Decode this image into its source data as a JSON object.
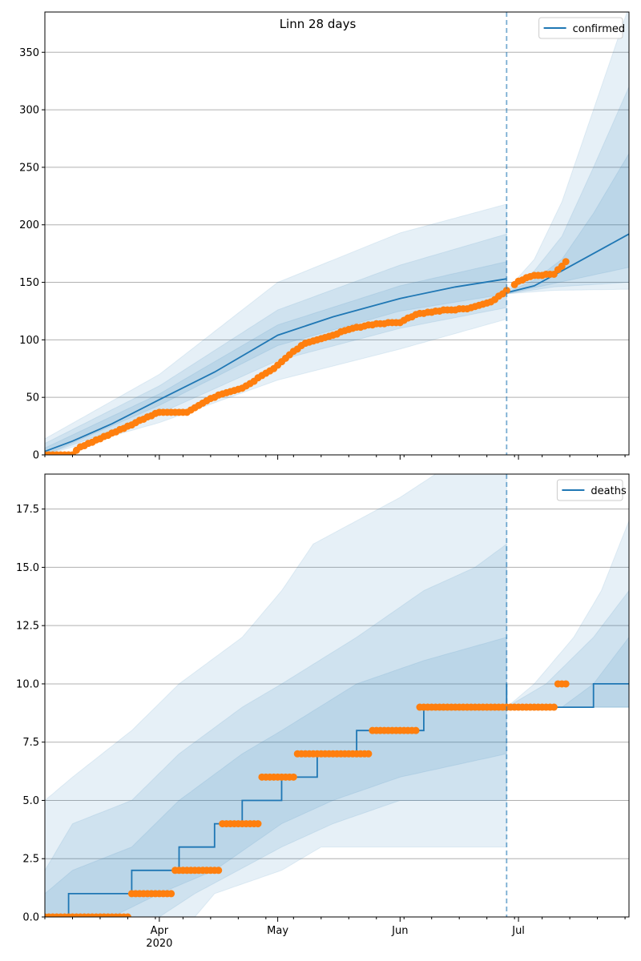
{
  "colors": {
    "model": "#1f77b4",
    "observed": "#ff7f0e",
    "grid": "#b0b0b0",
    "band": "#1f77b4"
  },
  "chart_data": [
    {
      "type": "line",
      "title": "Linn 28 days",
      "xlabel": "",
      "ylabel": "",
      "legend": {
        "placement": "top-right",
        "entries": [
          "confirmed"
        ]
      },
      "grid": "horizontal",
      "xlim": [
        "2020-03-03",
        "2020-07-29"
      ],
      "ylim": [
        0,
        385
      ],
      "y_ticks": [
        "0",
        "50",
        "100",
        "150",
        "200",
        "250",
        "300",
        "350"
      ],
      "x_ticks": [
        "Apr\n2020",
        "May",
        "Jun",
        "Jul"
      ],
      "forecast_start": "2020-06-28",
      "series": [
        {
          "name": "confirmed",
          "points": [
            [
              "2020-03-03",
              3
            ],
            [
              "2020-03-10",
              12
            ],
            [
              "2020-03-20",
              27
            ],
            [
              "2020-04-01",
              48
            ],
            [
              "2020-04-15",
              72
            ],
            [
              "2020-05-01",
              104
            ],
            [
              "2020-05-15",
              120
            ],
            [
              "2020-06-01",
              136
            ],
            [
              "2020-06-15",
              146
            ],
            [
              "2020-06-28",
              153
            ]
          ]
        },
        {
          "points": [
            [
              "2020-06-28",
              141
            ],
            [
              "2020-07-05",
              147
            ],
            [
              "2020-07-12",
              160
            ],
            [
              "2020-07-20",
              175
            ],
            [
              "2020-07-29",
              192
            ]
          ]
        }
      ],
      "observed": [
        [
          "2020-03-03",
          0
        ],
        [
          "2020-03-10",
          0
        ],
        [
          "2020-03-12",
          7
        ],
        [
          "2020-03-17",
          14
        ],
        [
          "2020-03-26",
          28
        ],
        [
          "2020-04-01",
          37
        ],
        [
          "2020-04-08",
          37
        ],
        [
          "2020-04-12",
          45
        ],
        [
          "2020-04-16",
          52
        ],
        [
          "2020-04-22",
          58
        ],
        [
          "2020-04-30",
          75
        ],
        [
          "2020-05-04",
          87
        ],
        [
          "2020-05-08",
          97
        ],
        [
          "2020-05-14",
          103
        ],
        [
          "2020-05-20",
          110
        ],
        [
          "2020-05-26",
          114
        ],
        [
          "2020-06-01",
          115
        ],
        [
          "2020-06-05",
          122
        ],
        [
          "2020-06-10",
          125
        ],
        [
          "2020-06-18",
          127
        ],
        [
          "2020-06-24",
          133
        ],
        [
          "2020-06-27",
          140
        ],
        [
          "2020-07-01",
          151
        ],
        [
          "2020-07-05",
          156
        ],
        [
          "2020-07-10",
          157
        ],
        [
          "2020-07-13",
          168
        ]
      ],
      "bands": [
        {
          "level": "outer",
          "upper": [
            [
              "2020-03-03",
              14
            ],
            [
              "2020-04-01",
              70
            ],
            [
              "2020-05-01",
              150
            ],
            [
              "2020-06-01",
              193
            ],
            [
              "2020-06-28",
              218
            ]
          ],
          "lower": [
            [
              "2020-03-03",
              0
            ],
            [
              "2020-04-01",
              28
            ],
            [
              "2020-05-01",
              65
            ],
            [
              "2020-06-01",
              92
            ],
            [
              "2020-06-28",
              118
            ]
          ]
        },
        {
          "level": "middle",
          "upper": [
            [
              "2020-03-03",
              10
            ],
            [
              "2020-04-01",
              60
            ],
            [
              "2020-05-01",
              126
            ],
            [
              "2020-06-01",
              165
            ],
            [
              "2020-06-28",
              192
            ]
          ],
          "lower": [
            [
              "2020-03-03",
              0
            ],
            [
              "2020-04-01",
              36
            ],
            [
              "2020-05-01",
              82
            ],
            [
              "2020-06-01",
              110
            ],
            [
              "2020-06-28",
              128
            ]
          ]
        },
        {
          "level": "inner",
          "upper": [
            [
              "2020-03-03",
              6
            ],
            [
              "2020-04-01",
              53
            ],
            [
              "2020-05-01",
              113
            ],
            [
              "2020-06-01",
              147
            ],
            [
              "2020-06-28",
              168
            ]
          ],
          "lower": [
            [
              "2020-03-03",
              0
            ],
            [
              "2020-04-01",
              43
            ],
            [
              "2020-05-01",
              95
            ],
            [
              "2020-06-01",
              125
            ],
            [
              "2020-06-28",
              140
            ]
          ]
        },
        {
          "level": "outer",
          "upper": [
            [
              "2020-06-28",
              143
            ],
            [
              "2020-07-05",
              170
            ],
            [
              "2020-07-12",
              220
            ],
            [
              "2020-07-20",
              300
            ],
            [
              "2020-07-29",
              390
            ]
          ],
          "lower": [
            [
              "2020-06-28",
              140
            ],
            [
              "2020-07-10",
              143
            ],
            [
              "2020-07-29",
              144
            ]
          ]
        },
        {
          "level": "middle",
          "upper": [
            [
              "2020-06-28",
              142
            ],
            [
              "2020-07-05",
              160
            ],
            [
              "2020-07-12",
              190
            ],
            [
              "2020-07-20",
              250
            ],
            [
              "2020-07-29",
              320
            ]
          ],
          "lower": [
            [
              "2020-06-28",
              140
            ],
            [
              "2020-07-10",
              146
            ],
            [
              "2020-07-29",
              150
            ]
          ]
        },
        {
          "level": "inner",
          "upper": [
            [
              "2020-06-28",
              141
            ],
            [
              "2020-07-05",
              152
            ],
            [
              "2020-07-12",
              170
            ],
            [
              "2020-07-20",
              210
            ],
            [
              "2020-07-29",
              262
            ]
          ],
          "lower": [
            [
              "2020-06-28",
              140
            ],
            [
              "2020-07-10",
              149
            ],
            [
              "2020-07-29",
              163
            ]
          ]
        }
      ]
    },
    {
      "type": "line",
      "title": "",
      "xlabel": "",
      "ylabel": "",
      "legend": {
        "placement": "top-right",
        "entries": [
          "deaths"
        ]
      },
      "grid": "horizontal",
      "xlim": [
        "2020-03-03",
        "2020-07-29"
      ],
      "ylim": [
        0,
        19
      ],
      "y_ticks": [
        "0.0",
        "2.5",
        "5.0",
        "7.5",
        "10.0",
        "12.5",
        "15.0",
        "17.5"
      ],
      "x_ticks": [
        "Apr\n2020",
        "May",
        "Jun",
        "Jul"
      ],
      "forecast_start": "2020-06-28",
      "series": [
        {
          "name": "deaths",
          "steps": [
            [
              "2020-03-03",
              0
            ],
            [
              "2020-03-09",
              1
            ],
            [
              "2020-03-25",
              2
            ],
            [
              "2020-04-06",
              3
            ],
            [
              "2020-04-15",
              4
            ],
            [
              "2020-04-22",
              5
            ],
            [
              "2020-05-02",
              6
            ],
            [
              "2020-05-11",
              7
            ],
            [
              "2020-05-21",
              8
            ],
            [
              "2020-06-07",
              9
            ],
            [
              "2020-06-28",
              10
            ]
          ]
        },
        {
          "steps": [
            [
              "2020-06-28",
              9
            ],
            [
              "2020-07-20",
              10
            ],
            [
              "2020-07-29",
              10
            ]
          ]
        }
      ],
      "observed_segments": [
        {
          "value": 0,
          "from": "2020-03-03",
          "to": "2020-03-24"
        },
        {
          "value": 1,
          "from": "2020-03-25",
          "to": "2020-04-04"
        },
        {
          "value": 2,
          "from": "2020-04-05",
          "to": "2020-04-16"
        },
        {
          "value": 4,
          "from": "2020-04-17",
          "to": "2020-04-26"
        },
        {
          "value": 6,
          "from": "2020-04-27",
          "to": "2020-05-05"
        },
        {
          "value": 7,
          "from": "2020-05-06",
          "to": "2020-05-24"
        },
        {
          "value": 8,
          "from": "2020-05-25",
          "to": "2020-06-05"
        },
        {
          "value": 9,
          "from": "2020-06-06",
          "to": "2020-07-10"
        },
        {
          "value": 10,
          "from": "2020-07-11",
          "to": "2020-07-13"
        }
      ],
      "bands": [
        {
          "level": "outer",
          "upper": [
            [
              "2020-03-03",
              5
            ],
            [
              "2020-03-10",
              6
            ],
            [
              "2020-03-25",
              8
            ],
            [
              "2020-04-06",
              10
            ],
            [
              "2020-04-22",
              12
            ],
            [
              "2020-05-02",
              14
            ],
            [
              "2020-05-10",
              16
            ],
            [
              "2020-05-21",
              17
            ],
            [
              "2020-06-01",
              18
            ],
            [
              "2020-06-10",
              19
            ],
            [
              "2020-06-28",
              19
            ]
          ],
          "lower": [
            [
              "2020-03-03",
              0
            ],
            [
              "2020-04-10",
              0
            ],
            [
              "2020-04-15",
              1
            ],
            [
              "2020-05-02",
              2
            ],
            [
              "2020-05-12",
              3
            ],
            [
              "2020-06-01",
              3
            ],
            [
              "2020-06-28",
              3
            ]
          ]
        },
        {
          "level": "middle",
          "upper": [
            [
              "2020-03-03",
              2
            ],
            [
              "2020-03-10",
              4
            ],
            [
              "2020-03-25",
              5
            ],
            [
              "2020-04-06",
              7
            ],
            [
              "2020-04-22",
              9
            ],
            [
              "2020-05-02",
              10
            ],
            [
              "2020-05-21",
              12
            ],
            [
              "2020-06-07",
              14
            ],
            [
              "2020-06-20",
              15
            ],
            [
              "2020-06-28",
              16
            ]
          ],
          "lower": [
            [
              "2020-03-03",
              0
            ],
            [
              "2020-04-01",
              0
            ],
            [
              "2020-04-10",
              1
            ],
            [
              "2020-05-02",
              3
            ],
            [
              "2020-05-15",
              4
            ],
            [
              "2020-06-01",
              5
            ],
            [
              "2020-06-28",
              5
            ]
          ]
        },
        {
          "level": "inner",
          "upper": [
            [
              "2020-03-03",
              1
            ],
            [
              "2020-03-10",
              2
            ],
            [
              "2020-03-25",
              3
            ],
            [
              "2020-04-06",
              5
            ],
            [
              "2020-04-22",
              7
            ],
            [
              "2020-05-02",
              8
            ],
            [
              "2020-05-21",
              10
            ],
            [
              "2020-06-07",
              11
            ],
            [
              "2020-06-28",
              12
            ]
          ],
          "lower": [
            [
              "2020-03-03",
              0
            ],
            [
              "2020-03-20",
              0
            ],
            [
              "2020-04-01",
              1
            ],
            [
              "2020-04-15",
              2
            ],
            [
              "2020-05-02",
              4
            ],
            [
              "2020-05-15",
              5
            ],
            [
              "2020-06-01",
              6
            ],
            [
              "2020-06-28",
              7
            ]
          ]
        },
        {
          "level": "outer",
          "upper": [
            [
              "2020-06-28",
              9
            ],
            [
              "2020-07-05",
              10
            ],
            [
              "2020-07-15",
              12
            ],
            [
              "2020-07-22",
              14
            ],
            [
              "2020-07-29",
              17
            ]
          ],
          "lower": [
            [
              "2020-06-28",
              9
            ],
            [
              "2020-07-29",
              9
            ]
          ]
        },
        {
          "level": "middle",
          "upper": [
            [
              "2020-06-28",
              9
            ],
            [
              "2020-07-08",
              10
            ],
            [
              "2020-07-20",
              12
            ],
            [
              "2020-07-29",
              14
            ]
          ],
          "lower": [
            [
              "2020-06-28",
              9
            ],
            [
              "2020-07-29",
              9
            ]
          ]
        },
        {
          "level": "inner",
          "upper": [
            [
              "2020-06-28",
              9
            ],
            [
              "2020-07-12",
              9
            ],
            [
              "2020-07-20",
              10
            ],
            [
              "2020-07-29",
              12
            ]
          ],
          "lower": [
            [
              "2020-06-28",
              9
            ],
            [
              "2020-07-29",
              9
            ]
          ]
        }
      ]
    }
  ]
}
